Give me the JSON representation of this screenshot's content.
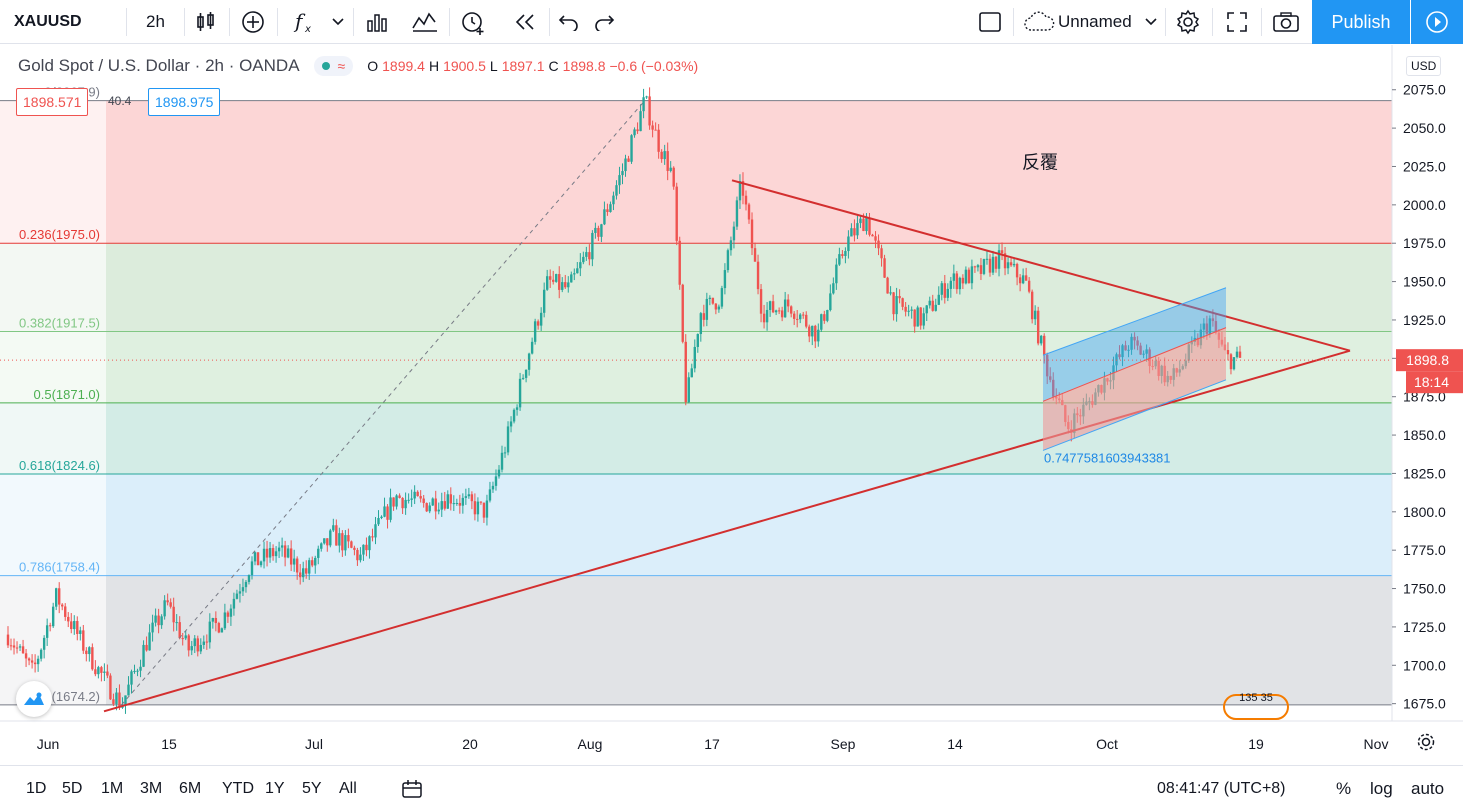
{
  "toolbar": {
    "symbol": "XAUUSD",
    "interval": "2h",
    "layout_name": "Unnamed",
    "publish_label": "Publish",
    "icons": [
      "candles-icon",
      "add-compare-icon",
      "indicators-icon",
      "chevron-down-icon",
      "bar-chart-icon",
      "templates-icon",
      "alert-icon",
      "replay-icon",
      "undo-icon",
      "redo-icon",
      "select-box-icon",
      "cloud-icon",
      "settings-icon",
      "fullscreen-icon",
      "screenshot-icon",
      "play-icon"
    ]
  },
  "legend": {
    "title": "Gold Spot / U.S. Dollar · 2h · OANDA",
    "open_label": "O",
    "open": "1899.4",
    "high_label": "H",
    "high": "1900.5",
    "low_label": "L",
    "low": "1897.1",
    "close_label": "C",
    "close": "1898.8",
    "change": "−0.6 (−0.03%)"
  },
  "quote": {
    "bid": "1898.571",
    "spread": "40.4",
    "ask": "1898.975"
  },
  "currency_badge": "USD",
  "fibonacci_levels": [
    {
      "label": "0(2067.9)",
      "price": 2067.9,
      "color": "#787b86"
    },
    {
      "label": "0.236(1975.0)",
      "price": 1975.0,
      "color": "#e53935"
    },
    {
      "label": "0.382(1917.5)",
      "price": 1917.5,
      "color": "#81c784"
    },
    {
      "label": "0.5(1871.0)",
      "price": 1871.0,
      "color": "#4caf50"
    },
    {
      "label": "0.618(1824.6)",
      "price": 1824.6,
      "color": "#26a69a"
    },
    {
      "label": "0.786(1758.4)",
      "price": 1758.4,
      "color": "#64b5f6"
    },
    {
      "label": "1(1674.2)",
      "price": 1674.2,
      "color": "#787b86"
    }
  ],
  "annotations": {
    "chinese_note": "反覆",
    "channel_ratio": "0.7477581603943381"
  },
  "price_axis": {
    "ticks": [
      "2075.0",
      "2050.0",
      "2025.0",
      "2000.0",
      "1975.0",
      "1950.0",
      "1925.0",
      "1900.0",
      "1875.0",
      "1850.0",
      "1825.0",
      "1800.0",
      "1775.0",
      "1750.0",
      "1725.0",
      "1700.0",
      "1675.0"
    ],
    "last_price": "1898.8",
    "countdown": "18:14",
    "last_price_color": "#ef5350"
  },
  "time_axis": {
    "ticks": [
      "Jun",
      "15",
      "Jul",
      "20",
      "Aug",
      "17",
      "Sep",
      "14",
      "Oct",
      "19",
      "Nov"
    ]
  },
  "bottom_bar": {
    "ranges": [
      "1D",
      "5D",
      "1M",
      "3M",
      "6M",
      "YTD",
      "1Y",
      "5Y",
      "All"
    ],
    "clock": "08:41:47 (UTC+8)",
    "percent": "%",
    "log": "log",
    "auto": "auto"
  },
  "chart_data": {
    "type": "candlestick",
    "title": "Gold Spot / U.S. Dollar · 2h · OANDA",
    "ylim": [
      1665,
      2082
    ],
    "x_range": [
      "Jun",
      "Nov"
    ],
    "up_color": "#26a69a",
    "down_color": "#ef5350",
    "price_path": [
      {
        "t": 0.0,
        "p": 1720
      },
      {
        "t": 0.018,
        "p": 1695
      },
      {
        "t": 0.035,
        "p": 1745
      },
      {
        "t": 0.055,
        "p": 1712
      },
      {
        "t": 0.07,
        "p": 1690
      },
      {
        "t": 0.082,
        "p": 1674
      },
      {
        "t": 0.1,
        "p": 1715
      },
      {
        "t": 0.115,
        "p": 1740
      },
      {
        "t": 0.13,
        "p": 1710
      },
      {
        "t": 0.155,
        "p": 1730
      },
      {
        "t": 0.175,
        "p": 1765
      },
      {
        "t": 0.195,
        "p": 1775
      },
      {
        "t": 0.215,
        "p": 1760
      },
      {
        "t": 0.235,
        "p": 1785
      },
      {
        "t": 0.255,
        "p": 1770
      },
      {
        "t": 0.28,
        "p": 1810
      },
      {
        "t": 0.3,
        "p": 1805
      },
      {
        "t": 0.32,
        "p": 1810
      },
      {
        "t": 0.345,
        "p": 1800
      },
      {
        "t": 0.36,
        "p": 1845
      },
      {
        "t": 0.375,
        "p": 1900
      },
      {
        "t": 0.39,
        "p": 1950
      },
      {
        "t": 0.405,
        "p": 1945
      },
      {
        "t": 0.425,
        "p": 1980
      },
      {
        "t": 0.445,
        "p": 2025
      },
      {
        "t": 0.46,
        "p": 2068
      },
      {
        "t": 0.47,
        "p": 2040
      },
      {
        "t": 0.48,
        "p": 2020
      },
      {
        "t": 0.49,
        "p": 1870
      },
      {
        "t": 0.5,
        "p": 1930
      },
      {
        "t": 0.515,
        "p": 1940
      },
      {
        "t": 0.53,
        "p": 2015
      },
      {
        "t": 0.545,
        "p": 1930
      },
      {
        "t": 0.565,
        "p": 1935
      },
      {
        "t": 0.585,
        "p": 1915
      },
      {
        "t": 0.605,
        "p": 1975
      },
      {
        "t": 0.62,
        "p": 1992
      },
      {
        "t": 0.64,
        "p": 1935
      },
      {
        "t": 0.66,
        "p": 1925
      },
      {
        "t": 0.68,
        "p": 1950
      },
      {
        "t": 0.7,
        "p": 1955
      },
      {
        "t": 0.715,
        "p": 1965
      },
      {
        "t": 0.735,
        "p": 1950
      },
      {
        "t": 0.75,
        "p": 1895
      },
      {
        "t": 0.765,
        "p": 1855
      },
      {
        "t": 0.78,
        "p": 1870
      },
      {
        "t": 0.795,
        "p": 1890
      },
      {
        "t": 0.81,
        "p": 1910
      },
      {
        "t": 0.825,
        "p": 1900
      },
      {
        "t": 0.84,
        "p": 1885
      },
      {
        "t": 0.855,
        "p": 1905
      },
      {
        "t": 0.868,
        "p": 1925
      },
      {
        "t": 0.88,
        "p": 1900
      },
      {
        "t": 0.89,
        "p": 1899
      }
    ]
  }
}
